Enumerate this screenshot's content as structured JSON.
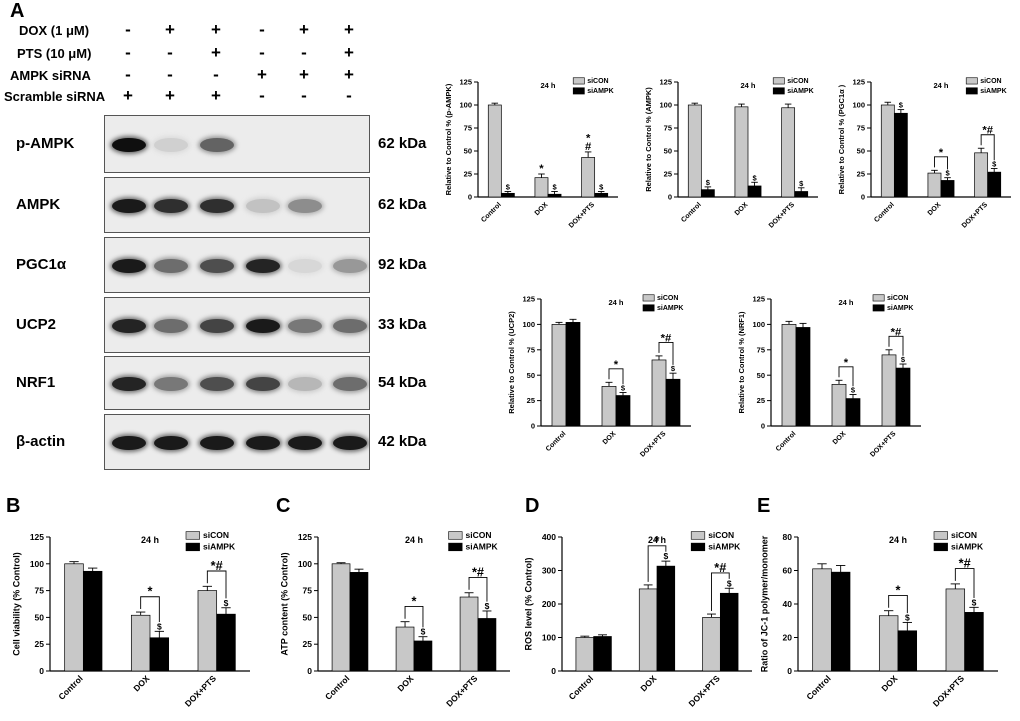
{
  "figure": {
    "letters": {
      "A": "A",
      "B": "B",
      "C": "C",
      "D": "D",
      "E": "E"
    },
    "conditions": [
      {
        "label": "DOX (1 μM)",
        "signs": [
          "-",
          "+",
          "+",
          "-",
          "+",
          "+"
        ]
      },
      {
        "label": "PTS (10 μM)",
        "signs": [
          "-",
          "-",
          "+",
          "-",
          "-",
          "+"
        ]
      },
      {
        "label": "AMPK siRNA",
        "signs": [
          "-",
          "-",
          "-",
          "+",
          "+",
          "+"
        ]
      },
      {
        "label": "Scramble siRNA",
        "signs": [
          "+",
          "+",
          "+",
          "-",
          "-",
          "-"
        ]
      }
    ],
    "blots": [
      {
        "name": "p-AMPK",
        "kda": "62 kDa",
        "intensity": [
          1.0,
          0.08,
          0.6,
          0.0,
          0.0,
          0.0
        ]
      },
      {
        "name": "AMPK",
        "kda": "62 kDa",
        "intensity": [
          0.95,
          0.85,
          0.85,
          0.15,
          0.4,
          0.0
        ]
      },
      {
        "name": "PGC1α",
        "kda": "92 kDa",
        "intensity": [
          0.95,
          0.55,
          0.7,
          0.9,
          0.05,
          0.35
        ]
      },
      {
        "name": "UCP2",
        "kda": "33 kDa",
        "intensity": [
          0.9,
          0.55,
          0.75,
          0.95,
          0.5,
          0.55
        ]
      },
      {
        "name": "NRF1",
        "kda": "54 kDa",
        "intensity": [
          0.9,
          0.5,
          0.7,
          0.75,
          0.2,
          0.55
        ]
      },
      {
        "name": "β-actin",
        "kda": "42 kDa",
        "intensity": [
          0.95,
          0.95,
          0.95,
          0.95,
          0.95,
          0.95
        ]
      }
    ]
  },
  "chart_data": [
    {
      "id": "pAMPK",
      "type": "bar",
      "title": "24 h",
      "ylabel": "Relative to Control % (p-AMPK)",
      "categories": [
        "Control",
        "DOX",
        "DOX+PTS"
      ],
      "ylim": [
        0,
        125
      ],
      "yticks": [
        0,
        25,
        50,
        75,
        100,
        125
      ],
      "legend": [
        "siCON",
        "siAMPK"
      ],
      "legend_position": "top-right",
      "series": [
        {
          "name": "siCON",
          "values": [
            100,
            21,
            43
          ],
          "errors": [
            2,
            4,
            6
          ]
        },
        {
          "name": "siAMPK",
          "values": [
            4,
            3,
            4
          ],
          "errors": [
            2,
            3,
            2
          ]
        }
      ],
      "marks": [
        {
          "category": 1,
          "series": 0,
          "label": "*"
        },
        {
          "category": 2,
          "series": 0,
          "label": "#"
        },
        {
          "category": 2,
          "series": 0,
          "label": "*"
        },
        {
          "category": 0,
          "series": 1,
          "label": "$"
        },
        {
          "category": 1,
          "series": 1,
          "label": "$"
        },
        {
          "category": 2,
          "series": 1,
          "label": "$"
        }
      ],
      "brackets": []
    },
    {
      "id": "AMPK",
      "type": "bar",
      "title": "24 h",
      "ylabel": "Relative to Control % (AMPK)",
      "categories": [
        "Control",
        "DOX",
        "DOX+PTS"
      ],
      "ylim": [
        0,
        125
      ],
      "yticks": [
        0,
        25,
        50,
        75,
        100,
        125
      ],
      "legend": [
        "siCON",
        "siAMPK"
      ],
      "legend_position": "top-right",
      "series": [
        {
          "name": "siCON",
          "values": [
            100,
            98,
            97
          ],
          "errors": [
            2,
            3,
            4
          ]
        },
        {
          "name": "siAMPK",
          "values": [
            8,
            12,
            6
          ],
          "errors": [
            3,
            4,
            4
          ]
        }
      ],
      "marks": [
        {
          "category": 0,
          "series": 1,
          "label": "$"
        },
        {
          "category": 1,
          "series": 1,
          "label": "$"
        },
        {
          "category": 2,
          "series": 1,
          "label": "$"
        }
      ],
      "brackets": []
    },
    {
      "id": "PGC1a",
      "type": "bar",
      "title": "24 h",
      "ylabel": "Relative to Control % (PGC1α )",
      "categories": [
        "Control",
        "DOX",
        "DOX+PTS"
      ],
      "ylim": [
        0,
        125
      ],
      "yticks": [
        0,
        25,
        50,
        75,
        100,
        125
      ],
      "legend": [
        "siCON",
        "siAMPK"
      ],
      "legend_position": "top-right",
      "series": [
        {
          "name": "siCON",
          "values": [
            100,
            26,
            48
          ],
          "errors": [
            3,
            3,
            5
          ]
        },
        {
          "name": "siAMPK",
          "values": [
            91,
            18,
            27
          ],
          "errors": [
            4,
            3,
            4
          ]
        }
      ],
      "marks": [
        {
          "category": 0,
          "series": 1,
          "label": "$"
        },
        {
          "category": 1,
          "series": 1,
          "label": "$"
        },
        {
          "category": 2,
          "series": 1,
          "label": "$"
        }
      ],
      "brackets": [
        {
          "category": 1,
          "label": "*"
        },
        {
          "category": 2,
          "label": "*#"
        }
      ]
    },
    {
      "id": "UCP2",
      "type": "bar",
      "title": "24 h",
      "ylabel": "Relative to Control % (UCP2)",
      "categories": [
        "Control",
        "DOX",
        "DOX+PTS"
      ],
      "ylim": [
        0,
        125
      ],
      "yticks": [
        0,
        25,
        50,
        75,
        100,
        125
      ],
      "legend": [
        "siCON",
        "siAMPK"
      ],
      "legend_position": "top-right",
      "series": [
        {
          "name": "siCON",
          "values": [
            100,
            39,
            65
          ],
          "errors": [
            2,
            4,
            4
          ]
        },
        {
          "name": "siAMPK",
          "values": [
            102,
            30,
            46
          ],
          "errors": [
            3,
            3,
            6
          ]
        }
      ],
      "marks": [
        {
          "category": 1,
          "series": 1,
          "label": "$"
        },
        {
          "category": 2,
          "series": 1,
          "label": "$"
        }
      ],
      "brackets": [
        {
          "category": 1,
          "label": "*"
        },
        {
          "category": 2,
          "label": "*#"
        }
      ]
    },
    {
      "id": "NRF1",
      "type": "bar",
      "title": "24 h",
      "ylabel": "Relative to Control % (NRF1)",
      "categories": [
        "Control",
        "DOX",
        "DOX+PTS"
      ],
      "ylim": [
        0,
        125
      ],
      "yticks": [
        0,
        25,
        50,
        75,
        100,
        125
      ],
      "legend": [
        "siCON",
        "siAMPK"
      ],
      "legend_position": "top-right",
      "series": [
        {
          "name": "siCON",
          "values": [
            100,
            41,
            70
          ],
          "errors": [
            3,
            4,
            5
          ]
        },
        {
          "name": "siAMPK",
          "values": [
            97,
            27,
            57
          ],
          "errors": [
            4,
            4,
            4
          ]
        }
      ],
      "marks": [
        {
          "category": 1,
          "series": 1,
          "label": "$"
        },
        {
          "category": 2,
          "series": 1,
          "label": "$"
        }
      ],
      "brackets": [
        {
          "category": 1,
          "label": "*"
        },
        {
          "category": 2,
          "label": "*#"
        }
      ]
    },
    {
      "id": "viability",
      "type": "bar",
      "title": "24 h",
      "ylabel": "Cell viability (% Control)",
      "categories": [
        "Control",
        "DOX",
        "DOX+PTS"
      ],
      "ylim": [
        0,
        125
      ],
      "yticks": [
        0,
        25,
        50,
        75,
        100,
        125
      ],
      "legend": [
        "siCON",
        "siAMPK"
      ],
      "legend_position": "top-right",
      "series": [
        {
          "name": "siCON",
          "values": [
            100,
            52,
            75
          ],
          "errors": [
            2,
            3,
            4
          ]
        },
        {
          "name": "siAMPK",
          "values": [
            93,
            31,
            53
          ],
          "errors": [
            3,
            6,
            6
          ]
        }
      ],
      "marks": [
        {
          "category": 1,
          "series": 1,
          "label": "$"
        },
        {
          "category": 2,
          "series": 1,
          "label": "$"
        }
      ],
      "brackets": [
        {
          "category": 1,
          "label": "*"
        },
        {
          "category": 2,
          "label": "*#"
        }
      ]
    },
    {
      "id": "ATP",
      "type": "bar",
      "title": "24 h",
      "ylabel": "ATP content (% Control)",
      "categories": [
        "Control",
        "DOX",
        "DOX+PTS"
      ],
      "ylim": [
        0,
        125
      ],
      "yticks": [
        0,
        25,
        50,
        75,
        100,
        125
      ],
      "legend": [
        "siCON",
        "siAMPK"
      ],
      "legend_position": "top-right",
      "series": [
        {
          "name": "siCON",
          "values": [
            100,
            41,
            69
          ],
          "errors": [
            1,
            5,
            4
          ]
        },
        {
          "name": "siAMPK",
          "values": [
            92,
            28,
            49
          ],
          "errors": [
            3,
            4,
            7
          ]
        }
      ],
      "marks": [
        {
          "category": 1,
          "series": 1,
          "label": "$"
        },
        {
          "category": 2,
          "series": 1,
          "label": "$"
        }
      ],
      "brackets": [
        {
          "category": 1,
          "label": "*"
        },
        {
          "category": 2,
          "label": "*#"
        }
      ]
    },
    {
      "id": "ROS",
      "type": "bar",
      "title": "24 h",
      "ylabel": "ROS level (% Control)",
      "categories": [
        "Control",
        "DOX",
        "DOX+PTS"
      ],
      "ylim": [
        0,
        400
      ],
      "yticks": [
        0,
        100,
        200,
        300,
        400
      ],
      "legend": [
        "siCON",
        "siAMPK"
      ],
      "legend_position": "top-right",
      "series": [
        {
          "name": "siCON",
          "values": [
            100,
            245,
            160
          ],
          "errors": [
            4,
            12,
            10
          ]
        },
        {
          "name": "siAMPK",
          "values": [
            103,
            313,
            232
          ],
          "errors": [
            5,
            15,
            15
          ]
        }
      ],
      "marks": [
        {
          "category": 1,
          "series": 1,
          "label": "$"
        },
        {
          "category": 2,
          "series": 1,
          "label": "$"
        }
      ],
      "brackets": [
        {
          "category": 1,
          "label": "*"
        },
        {
          "category": 2,
          "label": "*#"
        }
      ]
    },
    {
      "id": "JC1",
      "type": "bar",
      "title": "24 h",
      "ylabel": "Ratio of JC-1 polymer/monomer",
      "categories": [
        "Control",
        "DOX",
        "DOX+PTS"
      ],
      "ylim": [
        0,
        80
      ],
      "yticks": [
        0,
        20,
        40,
        60,
        80
      ],
      "legend": [
        "siCON",
        "siAMPK"
      ],
      "legend_position": "top-right",
      "series": [
        {
          "name": "siCON",
          "values": [
            61,
            33,
            49
          ],
          "errors": [
            3,
            3,
            3
          ]
        },
        {
          "name": "siAMPK",
          "values": [
            59,
            24,
            35
          ],
          "errors": [
            4,
            5,
            3
          ]
        }
      ],
      "marks": [
        {
          "category": 1,
          "series": 1,
          "label": "$"
        },
        {
          "category": 2,
          "series": 1,
          "label": "$"
        }
      ],
      "brackets": [
        {
          "category": 1,
          "label": "*"
        },
        {
          "category": 2,
          "label": "*#"
        }
      ]
    }
  ]
}
